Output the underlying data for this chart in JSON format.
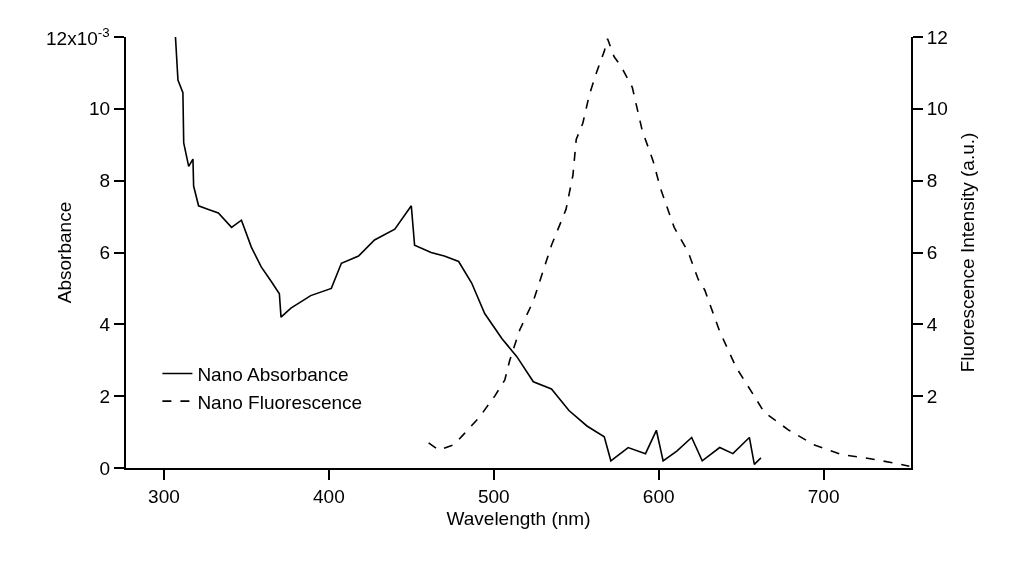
{
  "chart_data": {
    "type": "line",
    "xlabel": "Wavelength (nm)",
    "ylabel": "Absorbance",
    "y2label": "Fluorescence Intensity (a.u.)",
    "xlim": [
      277,
      753
    ],
    "xticks": [
      300,
      400,
      500,
      600,
      700
    ],
    "ylim": [
      0,
      12
    ],
    "yticks": [
      0,
      2,
      4,
      6,
      8,
      10,
      {
        "value": 12,
        "label": null
      }
    ],
    "annotations": [
      "12x10$^{-3}$"
    ],
    "y2lim": [
      0,
      12
    ],
    "y2ticks": [
      2,
      4,
      6,
      8,
      10,
      12
    ],
    "legend": "bottom left",
    "series": [
      {
        "name": "Nano Absorbance",
        "color": "#000000",
        "line_style": "solid",
        "x": [
          307,
          308.5,
          311.5,
          312,
          315,
          317.6,
          318,
          321,
          327,
          333,
          341,
          347,
          353,
          359,
          365,
          370,
          371,
          377,
          389,
          401.5,
          407.6,
          418,
          427.7,
          440,
          450,
          452,
          462,
          470,
          478.7,
          486.6,
          494.5,
          505,
          514,
          524,
          535,
          545.6,
          556.5,
          567,
          571,
          581.5,
          592,
          598.6,
          602.7,
          611,
          620,
          626.4,
          637,
          645,
          655,
          658,
          662
        ],
        "values": [
          12.0,
          10.8,
          10.45,
          9.05,
          8.4,
          8.6,
          7.85,
          7.3,
          7.2,
          7.1,
          6.7,
          6.9,
          6.15,
          5.6,
          5.2,
          4.85,
          4.2,
          4.45,
          4.8,
          5.0,
          5.7,
          5.9,
          6.35,
          6.65,
          7.3,
          6.2,
          6.0,
          5.9,
          5.75,
          5.15,
          4.3,
          3.6,
          3.1,
          2.4,
          2.2,
          1.6,
          1.17,
          0.87,
          0.2,
          0.57,
          0.4,
          1.05,
          0.2,
          0.47,
          0.85,
          0.2,
          0.57,
          0.4,
          0.85,
          0.1,
          0.28
        ]
      },
      {
        "name": "Nano Fluorescence",
        "color": "#000000",
        "line_style": "dashed",
        "axis": "y2",
        "x": [
          460.5,
          466.6,
          476,
          482,
          491,
          500.6,
          506.7,
          509.7,
          515.8,
          524,
          535,
          543.8,
          548,
          550,
          554,
          558,
          562.6,
          567,
          569,
          573,
          577,
          584,
          590,
          596.6,
          601,
          609.4,
          618,
          624,
          628,
          637,
          647,
          658,
          664,
          679,
          694,
          711,
          725.5,
          742.6,
          752
        ],
        "values": [
          0.7,
          0.5,
          0.65,
          0.95,
          1.4,
          2.0,
          2.45,
          3.0,
          3.85,
          4.65,
          6.2,
          7.2,
          8.15,
          9.15,
          9.6,
          10.4,
          11.05,
          11.6,
          11.95,
          11.45,
          11.2,
          10.6,
          9.4,
          8.55,
          7.8,
          6.7,
          6.0,
          5.25,
          4.95,
          3.8,
          2.8,
          2.0,
          1.55,
          1.05,
          0.65,
          0.37,
          0.28,
          0.14,
          0.05
        ]
      }
    ]
  }
}
